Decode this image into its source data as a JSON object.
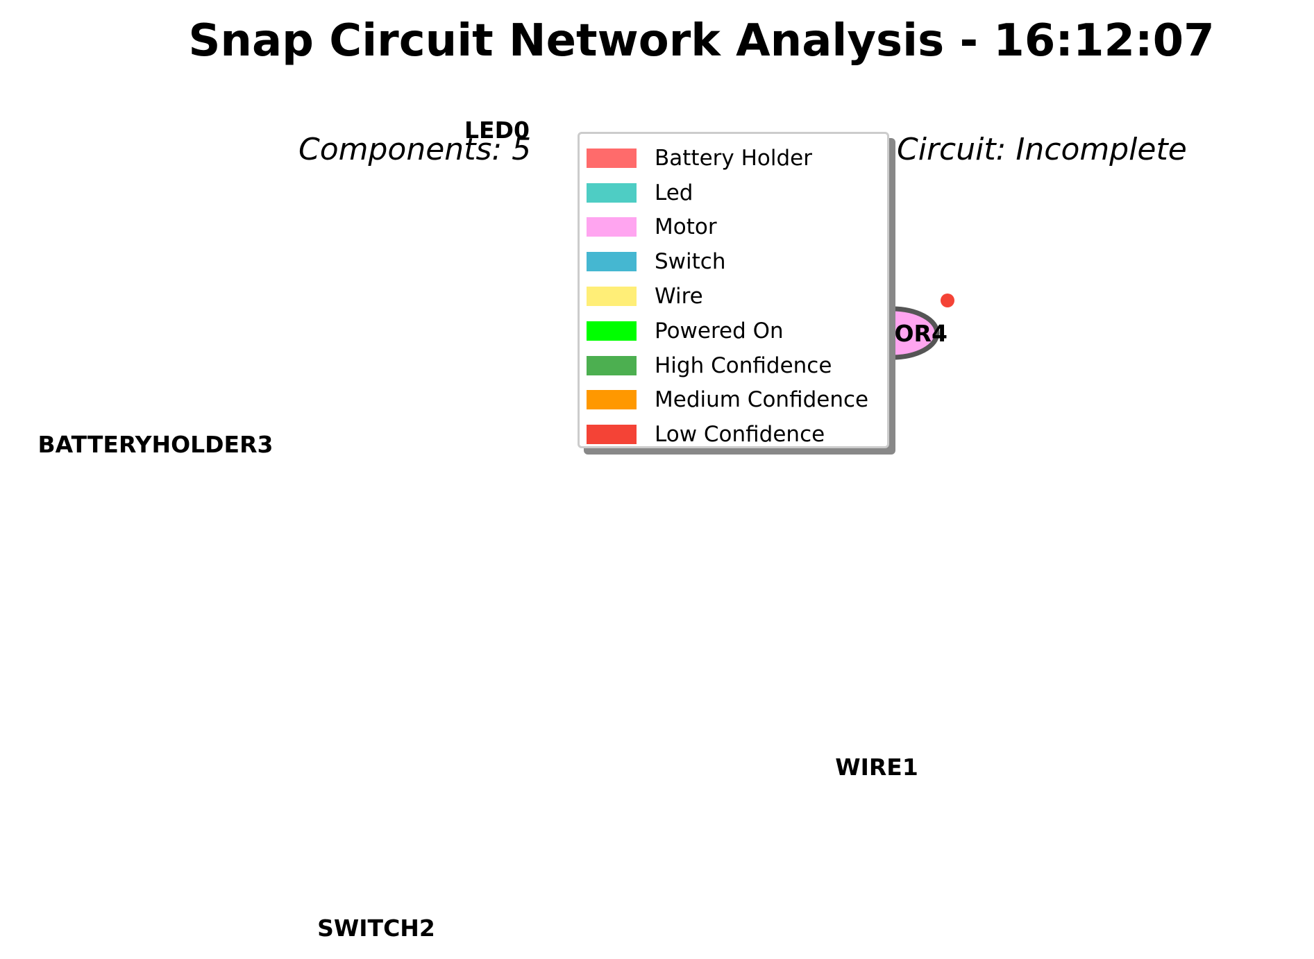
{
  "title": "Snap Circuit Network Analysis - 16:12:07",
  "subtitle": {
    "components": "Components: 5",
    "circuit": "Circuit: Incomplete"
  },
  "nodes": [
    {
      "label": "LED0",
      "type": "Led"
    },
    {
      "label": "WIRE1",
      "type": "Wire"
    },
    {
      "label": "SWITCH2",
      "type": "Switch"
    },
    {
      "label": "BATTERYHOLDER3",
      "type": "Battery Holder"
    },
    {
      "label": "MOTOR4",
      "type": "Motor",
      "fill": "#FFA5F0",
      "confidence": "Low Confidence"
    }
  ],
  "legend": [
    {
      "label": "Battery Holder",
      "color": "#FF6B6B"
    },
    {
      "label": "Led",
      "color": "#4ECDC4"
    },
    {
      "label": "Motor",
      "color": "#FFA5F0"
    },
    {
      "label": "Switch",
      "color": "#45B7D1"
    },
    {
      "label": "Wire",
      "color": "#FFEE77"
    },
    {
      "label": "Powered On",
      "color": "#00FF00"
    },
    {
      "label": "High Confidence",
      "color": "#4CAF50"
    },
    {
      "label": "Medium Confidence",
      "color": "#FF9800"
    },
    {
      "label": "Low Confidence",
      "color": "#F44336"
    }
  ]
}
